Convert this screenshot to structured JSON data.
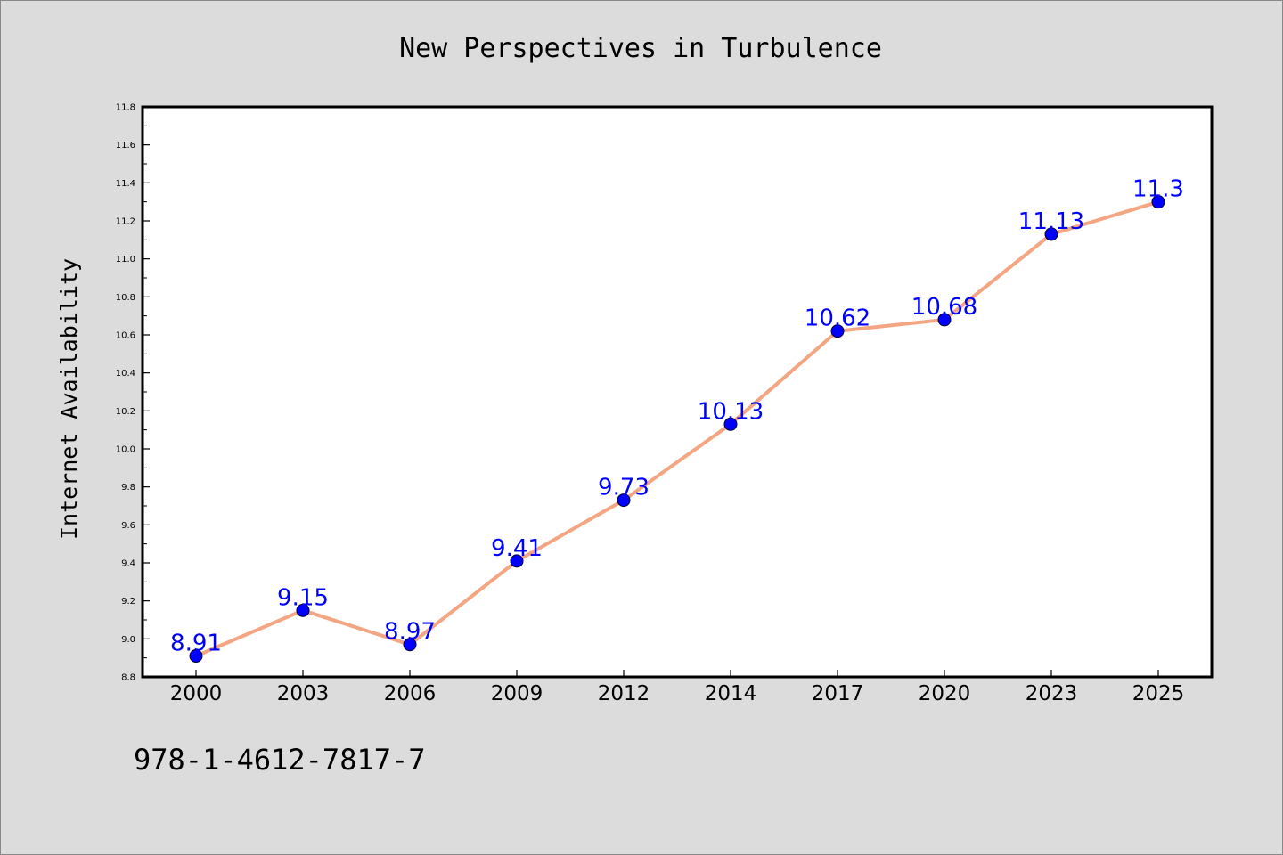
{
  "chart_data": {
    "type": "line",
    "title": "New Perspectives in Turbulence",
    "xlabel": "",
    "ylabel": "Internet Availability",
    "categories": [
      "2000",
      "2003",
      "2006",
      "2009",
      "2012",
      "2014",
      "2017",
      "2020",
      "2023",
      "2025"
    ],
    "series": [
      {
        "values": [
          8.91,
          9.15,
          8.97,
          9.41,
          9.73,
          10.13,
          10.62,
          10.68,
          11.13,
          11.3
        ],
        "labels": [
          "8.91",
          "9.15",
          "8.97",
          "9.41",
          "9.73",
          "10.13",
          "10.62",
          "10.68",
          "11.13",
          "11.3"
        ],
        "line_color": "#f4a582",
        "marker_color": "#0000ff",
        "label_color": "#0000ff"
      }
    ],
    "ylim": [
      8.8,
      11.8
    ],
    "yticks": [
      "8.8",
      "9.0",
      "9.2",
      "9.4",
      "9.6",
      "9.8",
      "10.0",
      "10.2",
      "10.4",
      "10.6",
      "10.8",
      "11.0",
      "11.2",
      "11.4",
      "11.6",
      "11.8"
    ],
    "grid": false,
    "legend": "none"
  },
  "footer_text": "978-1-4612-7817-7",
  "colors": {
    "background": "#dcdcdc",
    "plot_area": "#ffffff",
    "axis": "#000000"
  }
}
